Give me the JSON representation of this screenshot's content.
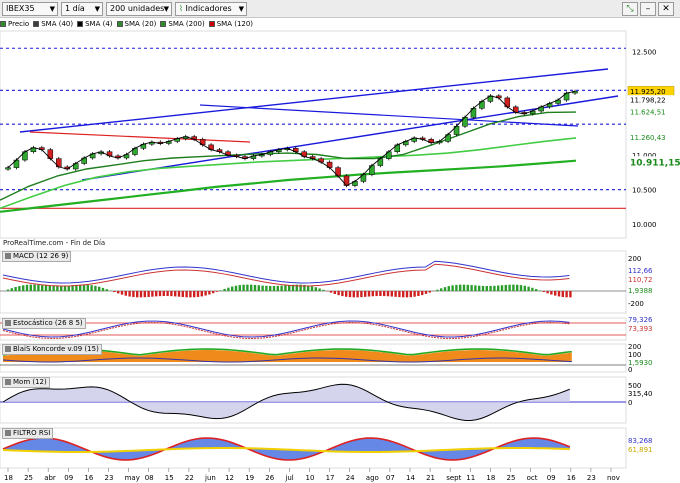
{
  "toolbar": {
    "symbol": "IBEX35",
    "period": "1 día",
    "units": "200 unidades",
    "indicators_label": "Indicadores"
  },
  "legend": [
    {
      "label": "Precio",
      "color": "#2e8b2e"
    },
    {
      "label": "SMA (40)",
      "color": "#3c3c3c"
    },
    {
      "label": "SMA (4)",
      "color": "#000000"
    },
    {
      "label": "SMA (20)",
      "color": "#2e8b2e"
    },
    {
      "label": "SMA (200)",
      "color": "#2e8b2e"
    },
    {
      "label": "SMA (120)",
      "color": "#cc0000"
    }
  ],
  "source_label": "ProRealTime.com - Fin de Día",
  "chart_data": {
    "type": "line",
    "title": "IBEX35",
    "x_ticks": [
      "18",
      "25",
      "abr",
      "09",
      "16",
      "23",
      "may",
      "08",
      "15",
      "22",
      "jun",
      "12",
      "19",
      "26",
      "jul",
      "10",
      "17",
      "24",
      "ago",
      "07",
      "14",
      "21",
      "sept",
      "11",
      "18",
      "25",
      "oct",
      "09",
      "16",
      "23",
      "nov"
    ],
    "price_axis": {
      "ticks": [
        "12.500",
        "11.000",
        "10.500",
        "10.000"
      ],
      "ylim": [
        9800,
        12800
      ],
      "labels": [
        {
          "text": "11.939,15",
          "value": 11939,
          "color": "#000000",
          "bg": "#ffffff"
        },
        {
          "text": "11.925,20",
          "value": 11925,
          "color": "#000000",
          "bg": "#ffd400"
        },
        {
          "text": "11.798,22",
          "value": 11798,
          "color": "#000000",
          "bg": "#ffffff"
        },
        {
          "text": "11.624,51",
          "value": 11624,
          "color": "#1a8a1a",
          "bg": "#ffffff"
        },
        {
          "text": "11.260,43",
          "value": 11260,
          "color": "#1a8a1a",
          "bg": "#ffffff"
        },
        {
          "text": "10.911,15",
          "value": 10911,
          "color": "#1a8a1a",
          "bg": "#ffffff"
        }
      ]
    },
    "price_series": [
      10820,
      10930,
      11050,
      11110,
      11080,
      10950,
      10830,
      10800,
      10880,
      10960,
      11020,
      11050,
      10990,
      10960,
      11010,
      11100,
      11160,
      11190,
      11170,
      11200,
      11240,
      11270,
      11230,
      11150,
      11080,
      11050,
      11000,
      10980,
      10950,
      10990,
      11010,
      11050,
      11080,
      11100,
      11050,
      10980,
      10950,
      10900,
      10820,
      10700,
      10560,
      10620,
      10720,
      10850,
      10950,
      11050,
      11150,
      11200,
      11250,
      11230,
      11180,
      11200,
      11300,
      11420,
      11550,
      11680,
      11780,
      11860,
      11830,
      11700,
      11620,
      11600,
      11640,
      11700,
      11750,
      11800,
      11900,
      11925
    ],
    "sma_series": [
      {
        "name": "SMA (200)",
        "color": "#22b022",
        "width": 2.2,
        "values": [
          10180,
          10240,
          10300,
          10360,
          10420,
          10480,
          10540,
          10590,
          10640,
          10680,
          10720,
          10750,
          10780,
          10810,
          10840,
          10880,
          10920
        ]
      },
      {
        "name": "SMA (120)",
        "color": "#44cc44",
        "width": 1.6,
        "values": [
          10230,
          10400,
          10560,
          10680,
          10760,
          10810,
          10840,
          10870,
          10900,
          10920,
          10940,
          10960,
          10980,
          11000,
          11030,
          11080,
          11140,
          11200,
          11250
        ]
      },
      {
        "name": "SMA (40)",
        "color": "#1e7e1e",
        "width": 1.4,
        "values": [
          10350,
          10550,
          10700,
          10800,
          10860,
          10920,
          10960,
          10980,
          11000,
          11020,
          11030,
          11010,
          10950,
          10950,
          11010,
          11150,
          11300,
          11450,
          11560,
          11620,
          11624
        ]
      }
    ],
    "horizontal_levels": [
      {
        "value": 12550,
        "style": "dashed",
        "color": "#1a1add"
      },
      {
        "value": 11940,
        "style": "dashed",
        "color": "#1a1add"
      },
      {
        "value": 11450,
        "style": "dashed",
        "color": "#1a1add"
      },
      {
        "value": 10500,
        "style": "dashed",
        "color": "#1a1add"
      },
      {
        "value": 10230,
        "style": "solid",
        "color": "#dd2222"
      }
    ],
    "panels": [
      {
        "title": "MACD (12 26 9)",
        "labels": [
          "200",
          "112,66",
          "110,72",
          "1,9388",
          "-200"
        ]
      },
      {
        "title": "Estocástico (26 8 5)",
        "labels": [
          "79,326",
          "73,393"
        ]
      },
      {
        "title": "BlaiS Koncorde v.09 (15)",
        "labels": [
          "200",
          "100",
          "1,5930",
          "0"
        ]
      },
      {
        "title": "Mom (12)",
        "labels": [
          "500",
          "315,40",
          "0"
        ]
      },
      {
        "title": "FILTRO RSI",
        "labels": [
          "83,268",
          "61,891"
        ]
      }
    ]
  }
}
